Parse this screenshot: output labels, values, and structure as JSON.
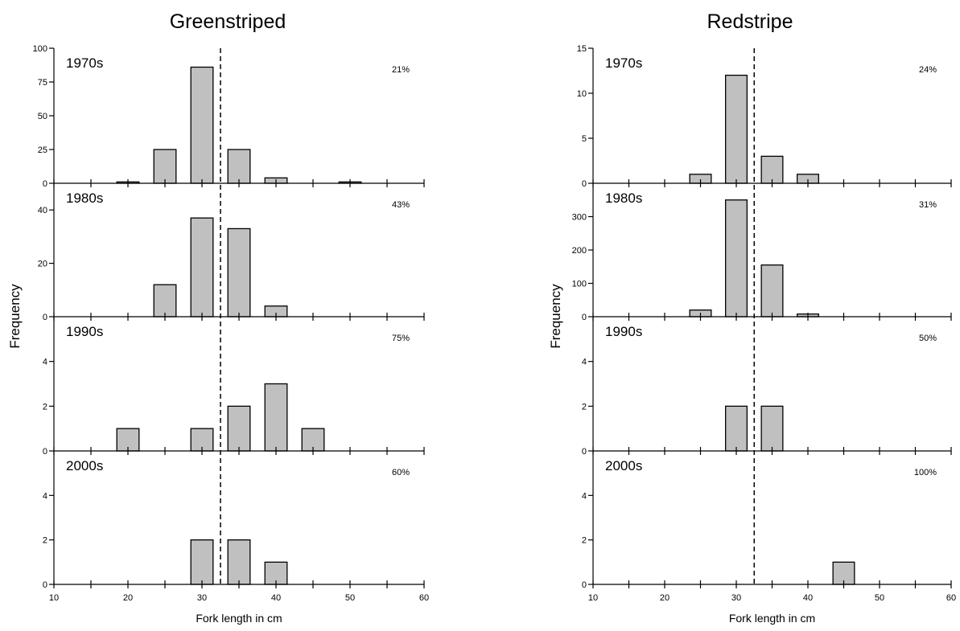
{
  "chart_data": [
    {
      "type": "bar",
      "title": "Greenstriped",
      "xlabel": "Fork length in cm",
      "ylabel": "Frequency",
      "xlim": [
        10,
        60
      ],
      "xticks": [
        10,
        20,
        30,
        40,
        50,
        60
      ],
      "bin_width": 3,
      "reference_line_x": 32.5,
      "panels": [
        {
          "label": "1970s",
          "percent": "21%",
          "ylim": [
            0,
            100
          ],
          "yticks": [
            0,
            25,
            50,
            75,
            100
          ],
          "bars": [
            {
              "x": 20,
              "value": 1
            },
            {
              "x": 25,
              "value": 25
            },
            {
              "x": 30,
              "value": 86
            },
            {
              "x": 35,
              "value": 25
            },
            {
              "x": 40,
              "value": 4
            },
            {
              "x": 50,
              "value": 1
            }
          ]
        },
        {
          "label": "1980s",
          "percent": "43%",
          "ylim": [
            0,
            50
          ],
          "yticks": [
            0,
            20,
            40
          ],
          "bars": [
            {
              "x": 25,
              "value": 12
            },
            {
              "x": 30,
              "value": 37
            },
            {
              "x": 35,
              "value": 33
            },
            {
              "x": 40,
              "value": 4
            }
          ]
        },
        {
          "label": "1990s",
          "percent": "75%",
          "ylim": [
            0,
            6
          ],
          "yticks": [
            0,
            2,
            4
          ],
          "bars": [
            {
              "x": 20,
              "value": 1
            },
            {
              "x": 30,
              "value": 1
            },
            {
              "x": 35,
              "value": 2
            },
            {
              "x": 40,
              "value": 3
            },
            {
              "x": 45,
              "value": 1
            }
          ]
        },
        {
          "label": "2000s",
          "percent": "60%",
          "ylim": [
            0,
            6
          ],
          "yticks": [
            0,
            2,
            4
          ],
          "bars": [
            {
              "x": 30,
              "value": 2
            },
            {
              "x": 35,
              "value": 2
            },
            {
              "x": 40,
              "value": 1
            }
          ]
        }
      ]
    },
    {
      "type": "bar",
      "title": "Redstripe",
      "xlabel": "Fork length in cm",
      "ylabel": "Frequency",
      "xlim": [
        10,
        60
      ],
      "xticks": [
        10,
        20,
        30,
        40,
        50,
        60
      ],
      "bin_width": 3,
      "reference_line_x": 32.5,
      "panels": [
        {
          "label": "1970s",
          "percent": "24%",
          "ylim": [
            0,
            15
          ],
          "yticks": [
            0,
            5,
            10,
            15
          ],
          "bars": [
            {
              "x": 25,
              "value": 1
            },
            {
              "x": 30,
              "value": 12
            },
            {
              "x": 35,
              "value": 3
            },
            {
              "x": 40,
              "value": 1
            }
          ]
        },
        {
          "label": "1980s",
          "percent": "31%",
          "ylim": [
            0,
            400
          ],
          "yticks": [
            0,
            100,
            200,
            300
          ],
          "bars": [
            {
              "x": 25,
              "value": 20
            },
            {
              "x": 30,
              "value": 350
            },
            {
              "x": 35,
              "value": 155
            },
            {
              "x": 40,
              "value": 8
            }
          ]
        },
        {
          "label": "1990s",
          "percent": "50%",
          "ylim": [
            0,
            6
          ],
          "yticks": [
            0,
            2,
            4
          ],
          "bars": [
            {
              "x": 30,
              "value": 2
            },
            {
              "x": 35,
              "value": 2
            }
          ]
        },
        {
          "label": "2000s",
          "percent": "100%",
          "ylim": [
            0,
            6
          ],
          "yticks": [
            0,
            2,
            4
          ],
          "bars": [
            {
              "x": 45,
              "value": 1
            }
          ]
        }
      ]
    }
  ]
}
